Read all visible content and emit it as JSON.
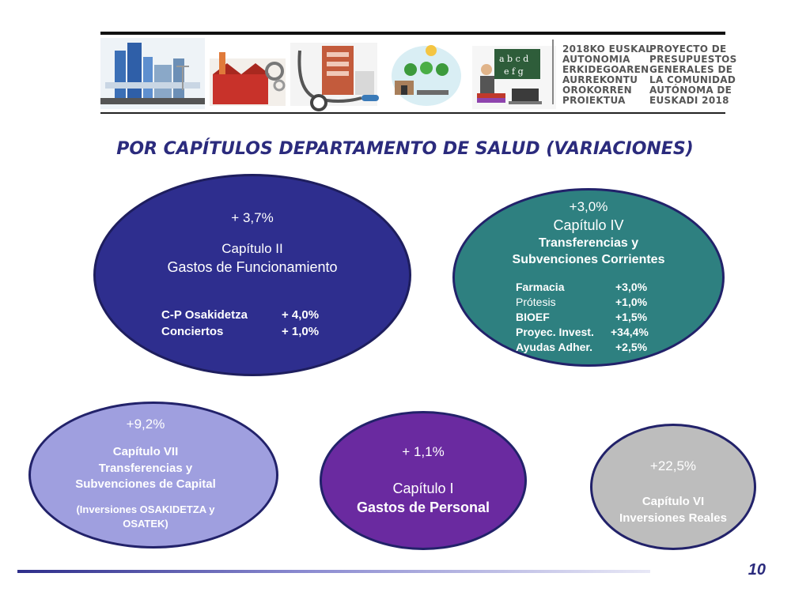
{
  "header": {
    "text_eu": "2018KO EUSKAL\nAUTONOMIA\nERKIDEGOAREN\nAURREKONTU\nOROKORREN\nPROIEKTUA",
    "text_es": "PROYECTO DE\nPRESUPUESTOS\nGENERALES DE\nLA COMUNIDAD\nAUTÓNOMA DE\nEUSKADI 2018"
  },
  "title": "POR CAPÍTULOS DEPARTAMENTO DE SALUD (VARIACIONES)",
  "cap2": {
    "pct": "+ 3,7%",
    "name": "Capítulo II",
    "desc": "Gastos de Funcionamiento",
    "items": [
      {
        "label": "C-P Osakidetza",
        "value": "+   4,0%"
      },
      {
        "label": "Conciertos",
        "value": "+   1,0%"
      }
    ]
  },
  "cap4": {
    "pct": "+3,0%",
    "name": "Capítulo IV",
    "desc1": "Transferencias y",
    "desc2": "Subvenciones Corrientes",
    "items": [
      {
        "label": "Farmacia",
        "value": "+3,0%"
      },
      {
        "label": "Prótesis",
        "value": "+1,0%"
      },
      {
        "label": "BIOEF",
        "value": "+1,5%"
      },
      {
        "label": "Proyec. Invest.",
        "value": "+34,4%"
      },
      {
        "label": "Ayudas Adher.",
        "value": "+2,5%"
      }
    ]
  },
  "cap7": {
    "pct": "+9,2%",
    "name": "Capítulo VII",
    "desc1": "Transferencias y",
    "desc2": "Subvenciones de Capital",
    "note1": "(Inversiones OSAKIDETZA y",
    "note2": "OSATEK)"
  },
  "cap1": {
    "pct": "+ 1,1%",
    "name": "Capítulo I",
    "desc": "Gastos de Personal"
  },
  "cap6": {
    "pct": "+22,5%",
    "name": "Capítulo VI",
    "desc": "Inversiones Reales"
  },
  "page_number": "10",
  "colors": {
    "cap2": "#2e2e8e",
    "cap4": "#2e8080",
    "cap7": "#9f9fdf",
    "cap1": "#6a2aa0",
    "cap6": "#bdbdbd"
  }
}
